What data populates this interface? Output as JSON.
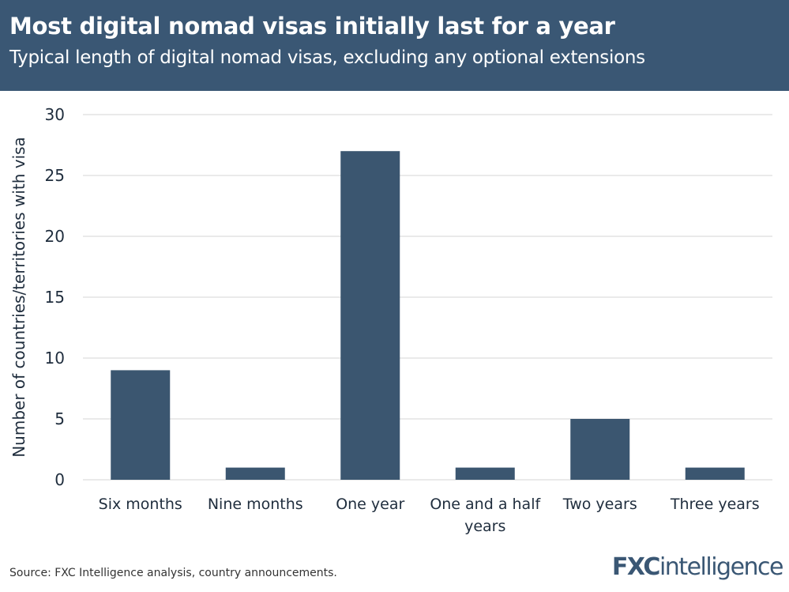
{
  "header": {
    "title": "Most digital nomad visas initially last for a year",
    "subtitle": "Typical length of digital nomad visas, excluding any optional extensions"
  },
  "chart_data": {
    "type": "bar",
    "categories": [
      "Six months",
      "Nine months",
      "One year",
      "One and a half years",
      "Two years",
      "Three years"
    ],
    "category_lines": [
      [
        "Six months"
      ],
      [
        "Nine months"
      ],
      [
        "One year"
      ],
      [
        "One and a half",
        "years"
      ],
      [
        "Two years"
      ],
      [
        "Three years"
      ]
    ],
    "values": [
      9,
      1,
      27,
      1,
      5,
      1
    ],
    "xlabel": "",
    "ylabel": "Number of countries/territories with visa",
    "ylim": [
      0,
      30
    ],
    "yticks": [
      0,
      5,
      10,
      15,
      20,
      25,
      30
    ],
    "grid": true,
    "bar_color": "#3b5670"
  },
  "footer": {
    "source": "Source: FXC Intelligence analysis, country announcements.",
    "logo": "FXCintelligence"
  },
  "colors": {
    "header_bg": "#3a5774",
    "text": "#1f2d3d",
    "grid": "#e3e3e3"
  }
}
